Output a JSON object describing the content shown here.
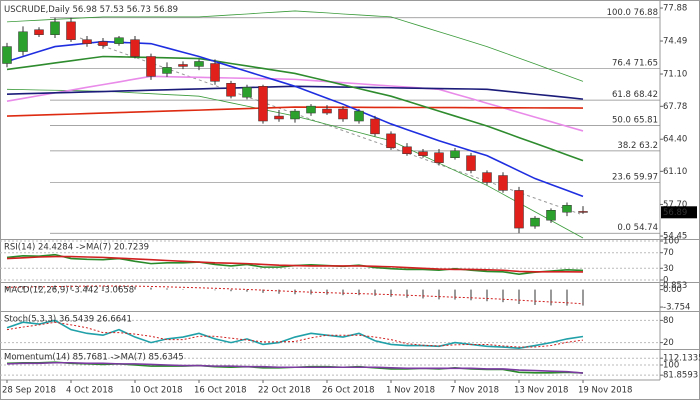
{
  "chart_data": [
    {
      "type": "candlestick",
      "title": "USCRUDE,Daily",
      "categories": [
        "28 Sep 2018",
        null,
        null,
        null,
        "4 Oct 2018",
        null,
        null,
        null,
        "10 Oct 2018",
        null,
        null,
        null,
        "16 Oct 2018",
        null,
        null,
        null,
        "22 Oct 2018",
        null,
        null,
        null,
        "26 Oct 2018",
        null,
        null,
        null,
        "1 Nov 2018",
        null,
        null,
        null,
        "7 Nov 2018",
        null,
        null,
        null,
        "13 Nov 2018",
        null,
        null,
        null,
        "19 Nov 2018"
      ],
      "open": [
        72.18,
        73.41,
        75.65,
        75.14,
        76.46,
        74.63,
        74.43,
        74.22,
        74.63,
        72.9,
        71.16,
        72.08,
        71.88,
        72.18,
        70.15,
        68.72,
        69.84,
        66.78,
        66.48,
        67.09,
        67.5,
        67.5,
        66.27,
        66.48,
        64.95,
        63.62,
        63.11,
        63.01,
        62.5,
        62.71,
        60.97,
        60.67,
        59.14,
        55.47,
        56.08,
        56.9,
        56.98
      ],
      "high": [
        74.3,
        76.0,
        75.9,
        76.9,
        76.88,
        75.0,
        74.8,
        75.0,
        75.0,
        73.2,
        72.3,
        72.4,
        72.6,
        72.6,
        70.4,
        70.0,
        70.0,
        67.4,
        67.5,
        68.0,
        67.9,
        67.8,
        67.5,
        66.8,
        65.2,
        64.0,
        63.4,
        63.4,
        63.5,
        63.0,
        61.2,
        61.0,
        59.5,
        56.5,
        57.3,
        57.9,
        57.53
      ],
      "low": [
        71.8,
        73.0,
        74.9,
        74.8,
        74.4,
        73.9,
        73.7,
        74.0,
        72.7,
        70.5,
        70.8,
        71.6,
        71.5,
        70.0,
        68.6,
        68.5,
        66.0,
        66.2,
        66.1,
        66.8,
        66.9,
        66.2,
        66.0,
        64.7,
        63.3,
        62.7,
        62.5,
        61.7,
        62.3,
        60.9,
        59.7,
        58.9,
        54.74,
        55.2,
        55.8,
        56.5,
        56.73
      ],
      "close": [
        73.92,
        75.44,
        75.14,
        76.46,
        74.63,
        74.22,
        74.02,
        74.83,
        72.9,
        70.86,
        71.78,
        71.88,
        72.39,
        70.35,
        68.82,
        69.74,
        66.27,
        66.48,
        67.29,
        67.8,
        67.09,
        66.48,
        67.29,
        64.95,
        63.52,
        62.91,
        62.71,
        61.99,
        63.22,
        61.18,
        59.96,
        59.14,
        55.27,
        56.29,
        57.1,
        57.61,
        56.89
      ],
      "up_color": "#2ca02c",
      "down_color": "#e0201a",
      "series": [
        {
          "color": "#3a9a3a",
          "style": "thin",
          "values": [
            76.46,
            76.55,
            76.63,
            76.72,
            76.8,
            76.89,
            76.97,
            76.97,
            76.97,
            76.97,
            76.97,
            76.97,
            76.97,
            77.07,
            77.17,
            77.27,
            77.38,
            77.48,
            77.58,
            77.48,
            77.38,
            77.27,
            77.17,
            77.07,
            76.97,
            76.46,
            75.95,
            75.44,
            74.94,
            74.43,
            73.92,
            73.33,
            72.73,
            72.14,
            71.54,
            70.95,
            70.35
          ]
        },
        {
          "color": "#3a9a3a",
          "style": "thin",
          "values": [
            69.53,
            69.5,
            69.46,
            69.43,
            69.4,
            69.36,
            69.33,
            69.25,
            69.16,
            69.08,
            68.99,
            68.91,
            68.82,
            68.48,
            68.14,
            67.8,
            67.46,
            67.12,
            66.78,
            66.36,
            65.93,
            65.51,
            65.09,
            64.66,
            64.24,
            63.48,
            62.71,
            61.95,
            61.18,
            60.42,
            59.65,
            58.75,
            57.85,
            56.95,
            56.05,
            55.15,
            54.25
          ]
        },
        {
          "color": "#e98be9",
          "style": "line",
          "values": [
            68.31,
            68.59,
            68.88,
            69.16,
            69.44,
            69.73,
            70.01,
            70.29,
            70.58,
            70.86,
            70.83,
            70.79,
            70.76,
            70.72,
            70.69,
            70.66,
            70.62,
            70.59,
            70.55,
            70.44,
            70.32,
            70.21,
            70.1,
            69.98,
            69.87,
            69.76,
            69.64,
            69.53,
            69.05,
            68.58,
            68.1,
            67.63,
            67.15,
            66.67,
            66.2,
            65.72,
            65.25
          ]
        },
        {
          "color": "#1b1b7a",
          "style": "line",
          "values": [
            69.03,
            69.08,
            69.12,
            69.17,
            69.21,
            69.26,
            69.3,
            69.35,
            69.39,
            69.44,
            69.48,
            69.53,
            69.57,
            69.62,
            69.66,
            69.71,
            69.75,
            69.8,
            69.84,
            69.81,
            69.79,
            69.76,
            69.74,
            69.71,
            69.69,
            69.66,
            69.63,
            69.61,
            69.58,
            69.56,
            69.53,
            69.36,
            69.19,
            69.02,
            68.86,
            68.69,
            68.52
          ]
        },
        {
          "color": "#dd2a10",
          "style": "line",
          "values": [
            66.78,
            66.83,
            66.88,
            66.93,
            66.98,
            67.04,
            67.09,
            67.14,
            67.19,
            67.24,
            67.29,
            67.34,
            67.39,
            67.45,
            67.5,
            67.55,
            67.6,
            67.65,
            67.7,
            67.69,
            67.69,
            67.68,
            67.68,
            67.67,
            67.67,
            67.66,
            67.66,
            67.65,
            67.65,
            67.64,
            67.64,
            67.63,
            67.63,
            67.62,
            67.61,
            67.61,
            67.6
          ]
        },
        {
          "color": "#2e8b2e",
          "style": "line",
          "values": [
            71.57,
            71.79,
            72.01,
            72.24,
            72.46,
            72.68,
            72.9,
            72.87,
            72.83,
            72.8,
            72.76,
            72.73,
            72.69,
            72.44,
            72.18,
            71.93,
            71.67,
            71.42,
            71.16,
            70.77,
            70.38,
            69.99,
            69.6,
            69.21,
            68.82,
            68.31,
            67.8,
            67.29,
            66.78,
            66.27,
            65.76,
            65.17,
            64.57,
            63.98,
            63.39,
            62.79,
            62.2
          ]
        },
        {
          "color": "#1f2fe0",
          "style": "line",
          "values": [
            72.39,
            72.9,
            73.41,
            73.92,
            74.09,
            74.26,
            74.43,
            74.36,
            74.29,
            74.22,
            73.78,
            73.34,
            72.9,
            72.39,
            71.88,
            71.37,
            70.86,
            70.35,
            69.84,
            69.23,
            68.61,
            68.0,
            67.32,
            66.65,
            65.97,
            65.39,
            64.82,
            64.24,
            63.73,
            63.22,
            62.71,
            61.93,
            61.14,
            60.36,
            59.75,
            59.14,
            58.53
          ]
        }
      ],
      "fib_levels": [
        {
          "ratio": "100.0",
          "price": 76.88
        },
        {
          "ratio": "76.4",
          "price": 71.65
        },
        {
          "ratio": "61.8",
          "price": 68.42
        },
        {
          "ratio": "50.0",
          "price": 65.81
        },
        {
          "ratio": "38.2",
          "price": 63.2
        },
        {
          "ratio": "23.6",
          "price": 59.97
        },
        {
          "ratio": "0.0",
          "price": 54.74
        }
      ],
      "ylim": [
        54.25,
        78.5
      ],
      "yticks": [
        77.88,
        74.49,
        {
          "value": 71.1,
          "label": "71.10"
        },
        67.78,
        {
          "value": 64.4,
          "label": "64.40"
        },
        {
          "value": 61.1,
          "label": "61.10"
        },
        {
          "value": 57.7,
          "label": "57.70"
        },
        54.45
      ],
      "grid": false
    },
    {
      "type": "line",
      "title": "RSI(14) 24.4284 ->MA(7) 20.7239",
      "ylim": [
        0,
        100
      ],
      "yticks": [
        100,
        70,
        30,
        0
      ],
      "grid": true,
      "series": [
        {
          "color": "#2a8a2a",
          "style": "line",
          "values": [
            58,
            62,
            61,
            65,
            55,
            53,
            52,
            55,
            48,
            42,
            44,
            44,
            46,
            40,
            36,
            40,
            33,
            33,
            37,
            39,
            37,
            35,
            38,
            32,
            29,
            27,
            27,
            25,
            29,
            25,
            22,
            21,
            15,
            20,
            23,
            26,
            24.4284
          ]
        },
        {
          "color": "#d02020",
          "style": "line",
          "values": [
            55,
            57,
            59,
            60,
            60,
            59,
            58,
            56,
            54,
            52,
            50,
            48,
            46,
            44,
            43,
            42,
            40,
            38,
            37,
            36,
            36,
            36,
            36,
            35,
            34,
            32,
            30,
            28,
            27,
            27,
            26,
            25,
            22,
            21,
            21,
            21,
            20.7239
          ]
        }
      ]
    },
    {
      "type": "line",
      "title": "MACD(12,26,9) -3.442 -3.0658",
      "ylim": [
        -4.6,
        1.2
      ],
      "yticks": [
        0.853,
        {
          "value": 0,
          "label": "0.00"
        },
        -3.754
      ],
      "grid": false,
      "series": [
        {
          "color": "#777777",
          "style": "bar",
          "values": [
            0.6,
            0.7,
            0.8,
            0.9,
            0.9,
            0.85,
            0.8,
            0.75,
            0.6,
            0.4,
            0.25,
            0.1,
            0,
            -0.15,
            -0.35,
            -0.45,
            -0.7,
            -0.9,
            -1.0,
            -1.05,
            -1.1,
            -1.2,
            -1.2,
            -1.35,
            -1.55,
            -1.75,
            -1.9,
            -2.1,
            -2.15,
            -2.3,
            -2.5,
            -2.7,
            -3.1,
            -3.3,
            -3.4,
            -3.45,
            -3.442
          ]
        },
        {
          "color": "#d02020",
          "style": "dotted",
          "values": [
            0.5,
            0.55,
            0.6,
            0.65,
            0.7,
            0.75,
            0.77,
            0.77,
            0.74,
            0.67,
            0.59,
            0.49,
            0.39,
            0.28,
            0.15,
            0.03,
            -0.12,
            -0.28,
            -0.42,
            -0.55,
            -0.66,
            -0.77,
            -0.86,
            -0.96,
            -1.08,
            -1.21,
            -1.35,
            -1.5,
            -1.63,
            -1.76,
            -1.91,
            -2.07,
            -2.27,
            -2.48,
            -2.66,
            -2.82,
            -3.0658
          ]
        }
      ]
    },
    {
      "type": "line",
      "title": "Stoch(5,3,3) 36.5439 26.6641",
      "ylim": [
        0,
        100
      ],
      "yticks": [
        80,
        20
      ],
      "grid": true,
      "series": [
        {
          "color": "#20a0a8",
          "style": "line",
          "values": [
            60,
            75,
            70,
            80,
            55,
            45,
            40,
            55,
            35,
            20,
            30,
            35,
            45,
            30,
            20,
            30,
            15,
            20,
            35,
            45,
            40,
            35,
            45,
            25,
            15,
            12,
            12,
            10,
            20,
            15,
            10,
            8,
            5,
            12,
            20,
            30,
            36.5439
          ]
        },
        {
          "color": "#d02020",
          "style": "dotted",
          "values": [
            55,
            62,
            68,
            75,
            68,
            60,
            47,
            47,
            43,
            37,
            28,
            28,
            37,
            37,
            32,
            27,
            22,
            22,
            23,
            33,
            40,
            40,
            40,
            35,
            28,
            17,
            13,
            11,
            14,
            15,
            15,
            11,
            8,
            8,
            12,
            21,
            26.6641
          ]
        }
      ]
    },
    {
      "type": "line",
      "title": "Momentum(14) 85.7681 ->MA(7) 85.6345",
      "ylim": [
        75,
        125
      ],
      "yticks": [
        112.1335,
        100,
        81.8593
      ],
      "grid": true,
      "series": [
        {
          "color": "#2a8a2a",
          "style": "line",
          "values": [
            103,
            104,
            104,
            105,
            103,
            102,
            101,
            102,
            100,
            98,
            98,
            98,
            99,
            97,
            96,
            97,
            95,
            95,
            96,
            97,
            97,
            96,
            97,
            95,
            93,
            93,
            94,
            93,
            95,
            93,
            92,
            92,
            87,
            86,
            86,
            87,
            85.7681
          ]
        },
        {
          "color": "#7a3aa0",
          "style": "line",
          "values": [
            102,
            103,
            103,
            104,
            104,
            103,
            103,
            102,
            102,
            101,
            100,
            99,
            99,
            98,
            98,
            97,
            97,
            96,
            96,
            96,
            96,
            96,
            96,
            96,
            95,
            94,
            94,
            94,
            94,
            94,
            93,
            93,
            91,
            90,
            89,
            88,
            85.6345
          ]
        }
      ]
    }
  ]
}
